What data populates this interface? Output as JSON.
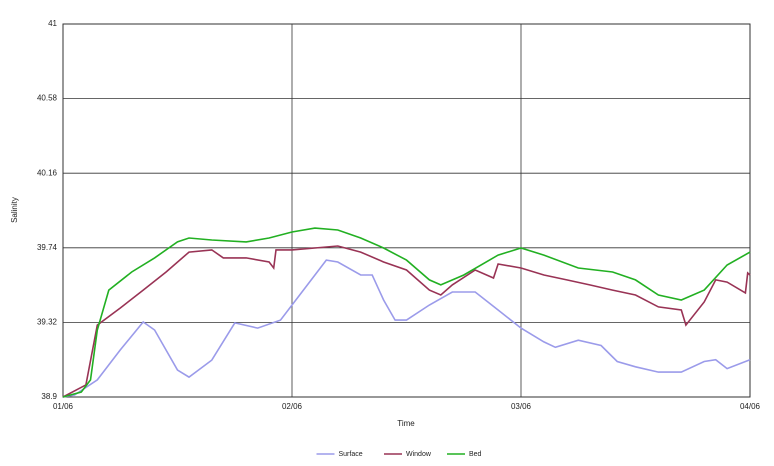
{
  "chart_data": {
    "type": "line",
    "x_label": "Time",
    "y_label": "Salinity",
    "xlim": [
      1,
      4
    ],
    "xticks": [
      {
        "value": 1,
        "label": "01/06"
      },
      {
        "value": 2,
        "label": "02/06"
      },
      {
        "value": 3,
        "label": "03/06"
      },
      {
        "value": 4,
        "label": "04/06"
      }
    ],
    "ylim": [
      38.9,
      41
    ],
    "yticks": [
      38.9,
      39.32,
      39.74,
      40.16,
      40.58,
      41
    ],
    "grid": true,
    "legend": "bottom",
    "series": [
      {
        "name": "Surface",
        "color": "#9b9bea",
        "x": [
          1.0,
          1.05,
          1.15,
          1.25,
          1.35,
          1.4,
          1.5,
          1.55,
          1.65,
          1.75,
          1.85,
          1.95,
          2.05,
          2.15,
          2.2,
          2.3,
          2.35,
          2.4,
          2.45,
          2.5,
          2.6,
          2.7,
          2.8,
          2.9,
          3.0,
          3.1,
          3.15,
          3.25,
          3.35,
          3.42,
          3.5,
          3.6,
          3.7,
          3.8,
          3.85,
          3.9,
          4.0
        ],
        "values": [
          38.9,
          38.911,
          38.996,
          39.165,
          39.322,
          39.277,
          39.052,
          39.012,
          39.108,
          39.317,
          39.288,
          39.333,
          39.502,
          39.671,
          39.66,
          39.587,
          39.587,
          39.446,
          39.333,
          39.333,
          39.418,
          39.491,
          39.491,
          39.39,
          39.288,
          39.21,
          39.18,
          39.22,
          39.19,
          39.1,
          39.07,
          39.04,
          39.04,
          39.1,
          39.11,
          39.06,
          39.11
        ]
      },
      {
        "name": "Window",
        "color": "#993355",
        "x": [
          1.0,
          1.1,
          1.15,
          1.25,
          1.35,
          1.45,
          1.55,
          1.65,
          1.7,
          1.8,
          1.9,
          1.92,
          1.93,
          2.0,
          2.1,
          2.2,
          2.3,
          2.4,
          2.5,
          2.6,
          2.65,
          2.7,
          2.8,
          2.88,
          2.9,
          3.0,
          3.1,
          3.2,
          3.3,
          3.4,
          3.5,
          3.6,
          3.7,
          3.72,
          3.8,
          3.85,
          3.9,
          3.98,
          3.99,
          4.0
        ],
        "values": [
          38.9,
          38.968,
          39.305,
          39.401,
          39.502,
          39.604,
          39.716,
          39.728,
          39.683,
          39.683,
          39.66,
          39.626,
          39.728,
          39.728,
          39.739,
          39.75,
          39.716,
          39.66,
          39.615,
          39.502,
          39.474,
          39.531,
          39.615,
          39.57,
          39.649,
          39.626,
          39.587,
          39.559,
          39.531,
          39.502,
          39.474,
          39.407,
          39.39,
          39.305,
          39.435,
          39.559,
          39.547,
          39.486,
          39.598,
          39.587
        ]
      },
      {
        "name": "Bed",
        "color": "#22b022",
        "x": [
          1.0,
          1.08,
          1.12,
          1.15,
          1.2,
          1.3,
          1.4,
          1.5,
          1.55,
          1.65,
          1.8,
          1.9,
          2.0,
          2.1,
          2.2,
          2.3,
          2.4,
          2.5,
          2.6,
          2.65,
          2.75,
          2.9,
          3.0,
          3.1,
          3.25,
          3.4,
          3.5,
          3.6,
          3.7,
          3.8,
          3.9,
          4.0
        ],
        "values": [
          38.9,
          38.928,
          38.996,
          39.277,
          39.502,
          39.604,
          39.683,
          39.773,
          39.795,
          39.784,
          39.773,
          39.795,
          39.829,
          39.851,
          39.84,
          39.795,
          39.739,
          39.671,
          39.559,
          39.531,
          39.587,
          39.699,
          39.739,
          39.699,
          39.626,
          39.604,
          39.559,
          39.474,
          39.446,
          39.502,
          39.643,
          39.716
        ]
      }
    ]
  }
}
